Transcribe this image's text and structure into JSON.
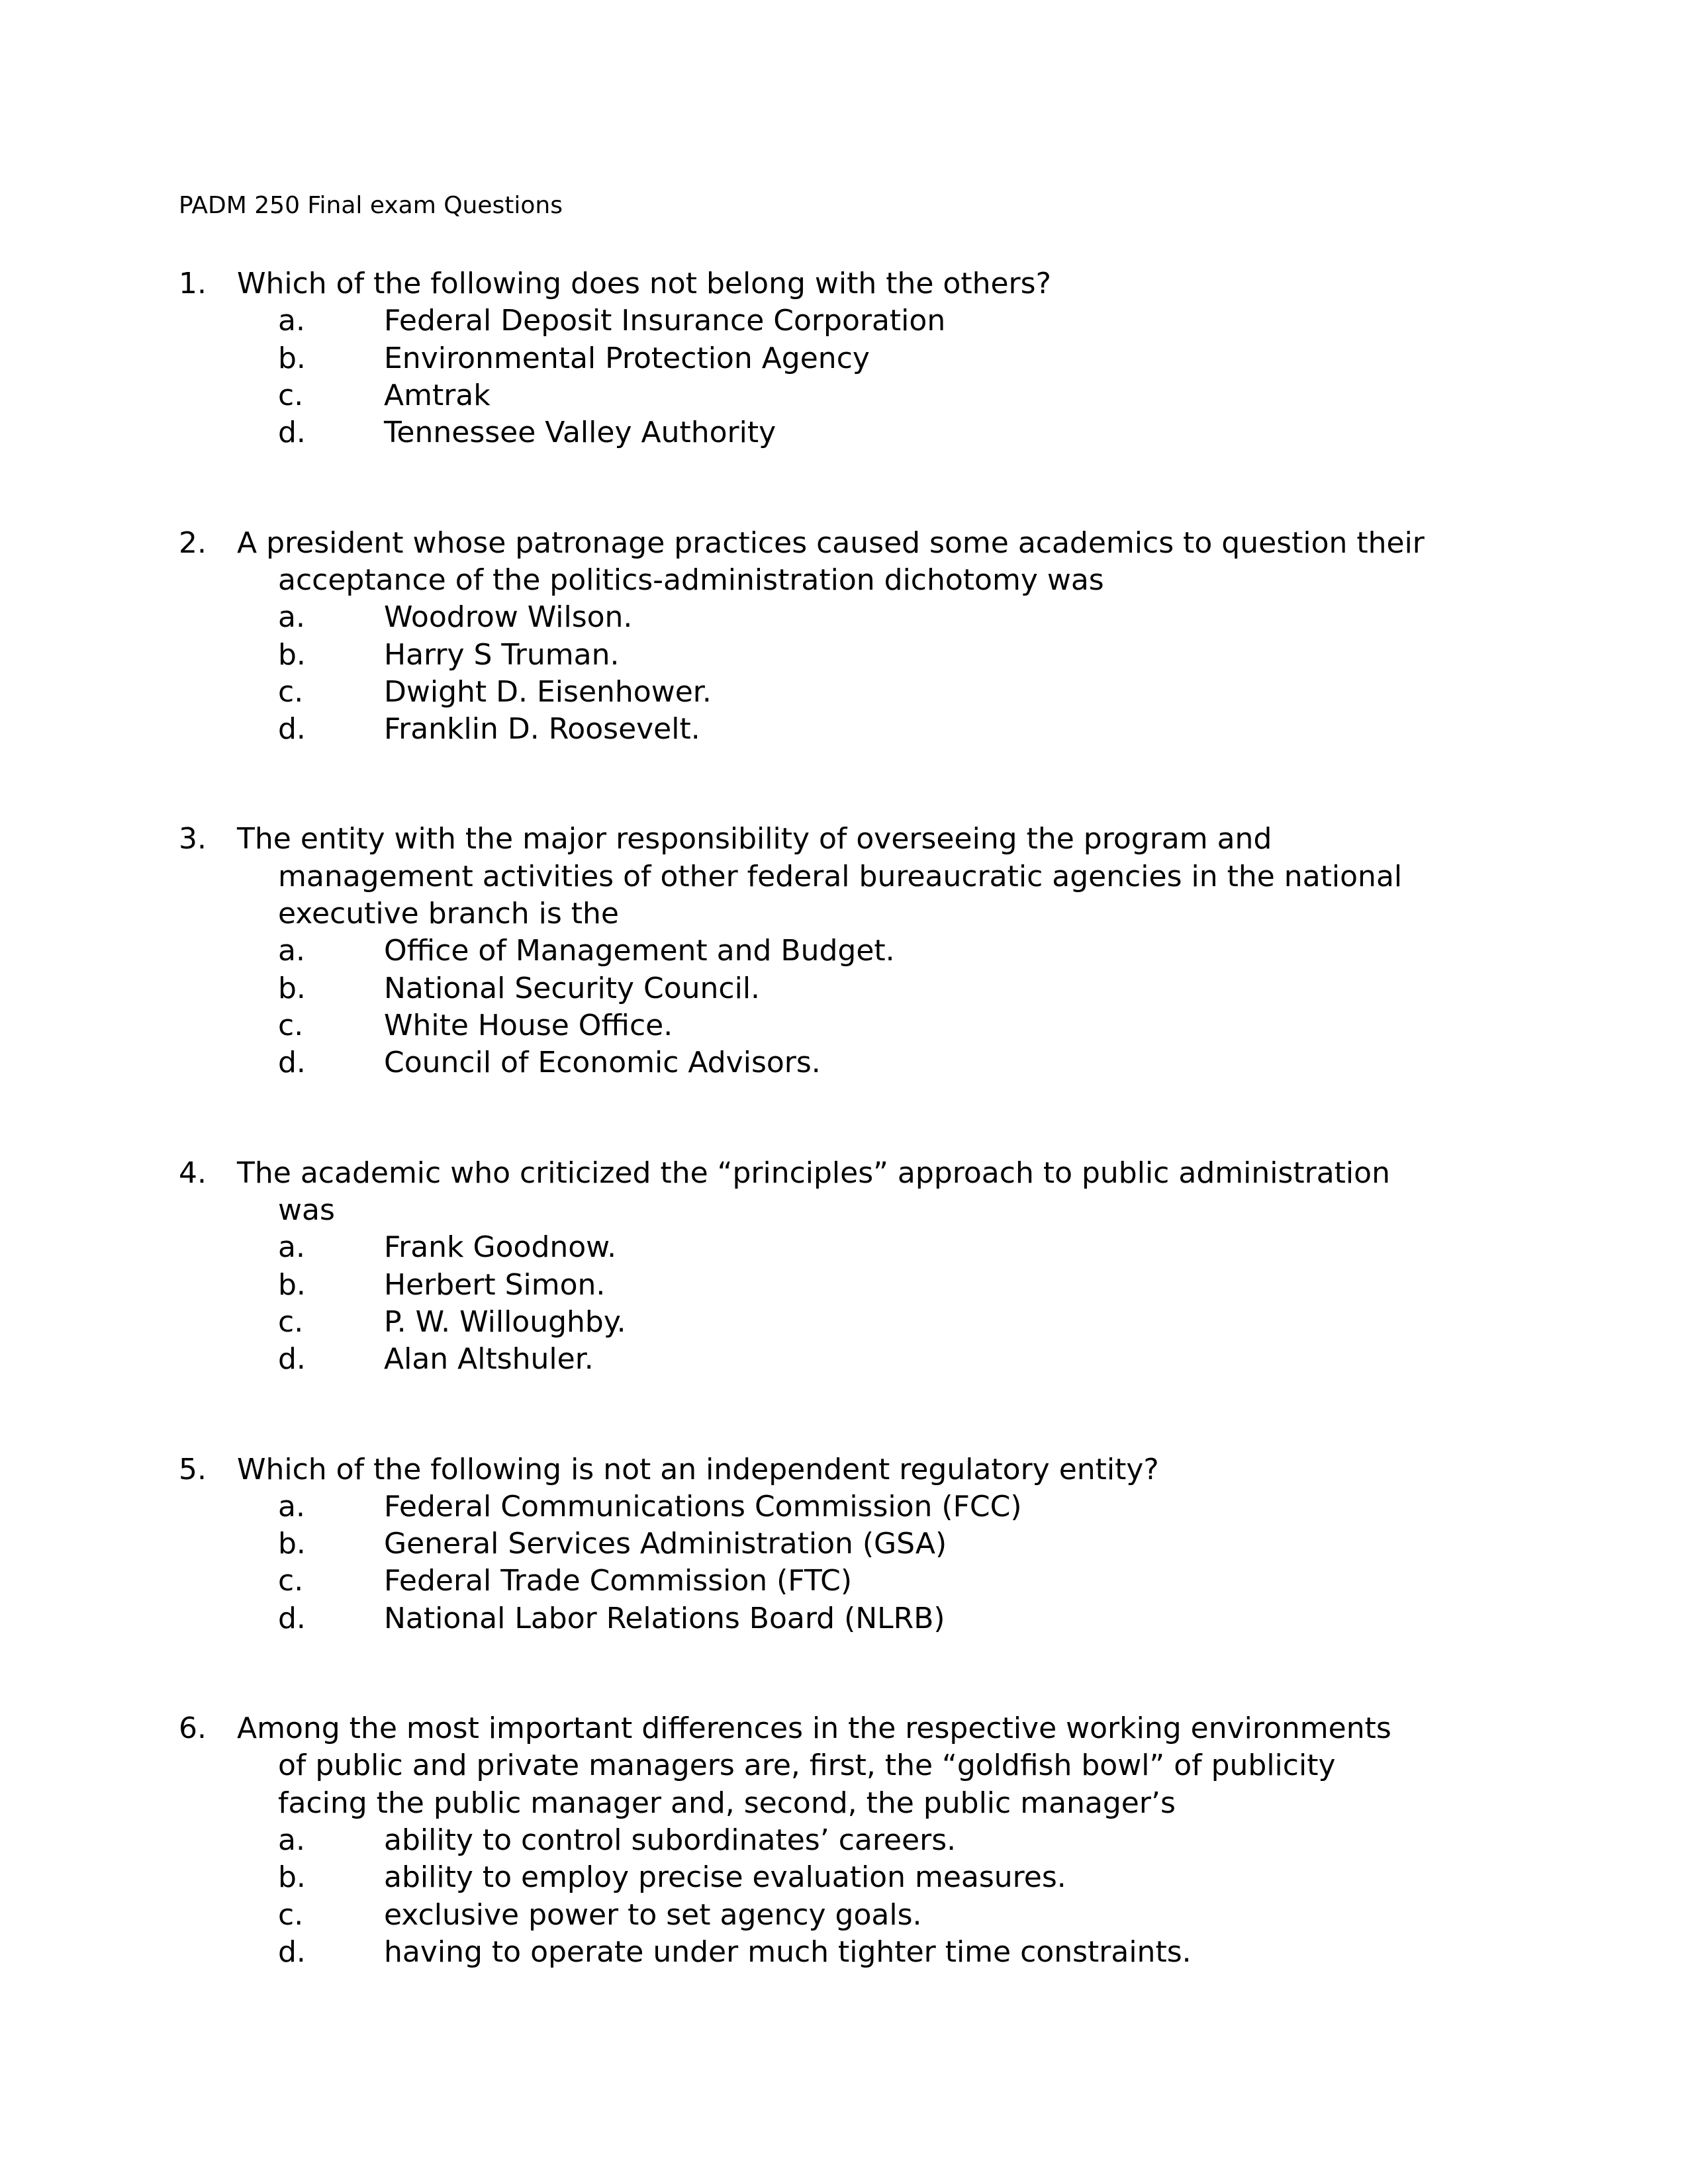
{
  "header": "PADM 250 Final exam Questions",
  "questions": [
    {
      "num": "1.",
      "stem_lines": [
        "Which of the following does not belong with the others?"
      ],
      "options": [
        {
          "letter": "a.",
          "text": "Federal Deposit Insurance Corporation"
        },
        {
          "letter": "b.",
          "text": "Environmental Protection Agency"
        },
        {
          "letter": "c.",
          "text": "Amtrak"
        },
        {
          "letter": "d.",
          "text": "Tennessee Valley Authority"
        }
      ]
    },
    {
      "num": "2.",
      "stem_lines": [
        "A president whose patronage practices caused some academics to question their",
        "acceptance of the politics-administration dichotomy was"
      ],
      "options": [
        {
          "letter": "a.",
          "text": "Woodrow Wilson."
        },
        {
          "letter": "b.",
          "text": "Harry S Truman."
        },
        {
          "letter": "c.",
          "text": "Dwight D. Eisenhower."
        },
        {
          "letter": "d.",
          "text": "Franklin D. Roosevelt."
        }
      ]
    },
    {
      "num": "3.",
      "stem_lines": [
        "The entity with the major responsibility of overseeing the program and",
        "management activities of other federal bureaucratic agencies in the national",
        "executive branch is the"
      ],
      "options": [
        {
          "letter": "a.",
          "text": "Office of Management and Budget."
        },
        {
          "letter": "b.",
          "text": "National Security Council."
        },
        {
          "letter": "c.",
          "text": "White House Office."
        },
        {
          "letter": "d.",
          "text": "Council of Economic Advisors."
        }
      ]
    },
    {
      "num": "4.",
      "stem_lines": [
        "The academic who criticized the “principles” approach to public administration",
        "was"
      ],
      "options": [
        {
          "letter": "a.",
          "text": "Frank Goodnow."
        },
        {
          "letter": "b.",
          "text": "Herbert Simon."
        },
        {
          "letter": "c.",
          "text": "P. W. Willoughby."
        },
        {
          "letter": "d.",
          "text": "Alan Altshuler."
        }
      ]
    },
    {
      "num": "5.",
      "stem_lines": [
        "Which of the following is not an independent regulatory entity?"
      ],
      "options": [
        {
          "letter": "a.",
          "text": "Federal Communications Commission (FCC)"
        },
        {
          "letter": "b.",
          "text": "General Services Administration (GSA)"
        },
        {
          "letter": "c.",
          "text": "Federal Trade Commission (FTC)"
        },
        {
          "letter": "d.",
          "text": "National Labor Relations Board (NLRB)"
        }
      ]
    },
    {
      "num": "6.",
      "stem_lines": [
        "Among the most important differences in the respective working environments",
        "of public and private managers are, first, the “goldfish bowl” of publicity",
        "facing the public manager and, second, the public manager’s"
      ],
      "options": [
        {
          "letter": "a.",
          "text": "ability to control subordinates’ careers."
        },
        {
          "letter": "b.",
          "text": "ability to employ precise evaluation measures."
        },
        {
          "letter": "c.",
          "text": "exclusive power to set agency goals."
        },
        {
          "letter": "d.",
          "text": "having to operate under much tighter time constraints."
        }
      ]
    }
  ]
}
